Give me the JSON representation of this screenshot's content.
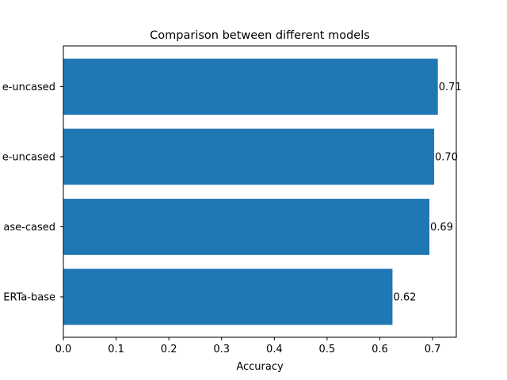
{
  "chart_data": {
    "type": "bar",
    "orientation": "horizontal",
    "title": "Comparison between different models",
    "xlabel": "Accuracy",
    "ylabel": "",
    "categories_visible": [
      "e-uncased",
      "e-uncased",
      "ase-cased",
      "ERTa-base"
    ],
    "values": [
      0.71,
      0.703,
      0.694,
      0.624
    ],
    "data_labels": [
      "0.71",
      "0.70",
      "0.69",
      "0.62"
    ],
    "xlim": [
      0,
      0.745
    ],
    "xticks": [
      0,
      0.1,
      0.2,
      0.3,
      0.4,
      0.5,
      0.6,
      0.7
    ],
    "xtick_labels": [
      "0.0",
      "0.1",
      "0.2",
      "0.3",
      "0.4",
      "0.5",
      "0.6",
      "0.7"
    ],
    "grid": false,
    "legend": "none",
    "bar_color": "#1f77b4"
  }
}
